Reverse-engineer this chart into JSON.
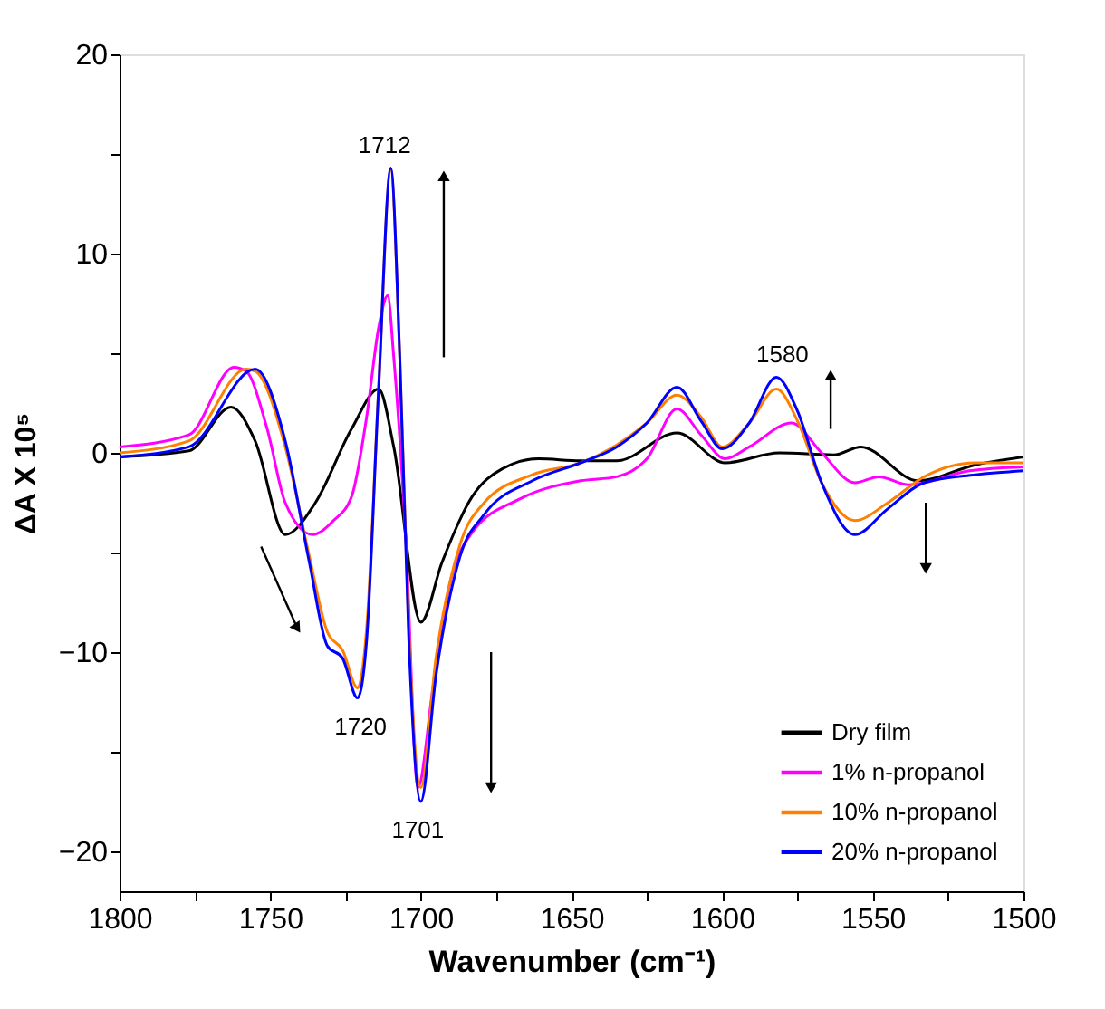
{
  "chart_data": {
    "type": "line",
    "xlabel": "Wavenumber (cm⁻¹)",
    "ylabel": "ΔA X 10⁵",
    "xlim": [
      1800,
      1500
    ],
    "ylim": [
      -22,
      20
    ],
    "xticks": [
      1800,
      {
        "value": 1775,
        "label": null
      },
      1750,
      {
        "value": 1725,
        "label": null
      },
      1700,
      {
        "value": 1675,
        "label": null
      },
      1650,
      {
        "value": 1625,
        "label": null
      },
      1600,
      {
        "value": 1575,
        "label": null
      },
      1550,
      {
        "value": 1525,
        "label": null
      },
      1500
    ],
    "yticks": [
      -20,
      {
        "value": -15,
        "label": null
      },
      -10,
      {
        "value": -5,
        "label": null
      },
      0,
      {
        "value": 5,
        "label": null
      },
      10,
      {
        "value": 15,
        "label": null
      },
      20
    ],
    "grid": false,
    "legend": "bottom right",
    "marker": "none",
    "line_style": "solid",
    "annotations": [
      {
        "text": "1712",
        "x": 1712,
        "y": 14.3
      },
      {
        "text": "1720",
        "x": 1720,
        "y": -12.3
      },
      {
        "text": "1701",
        "x": 1701,
        "y": -17.5
      },
      {
        "text": "1580",
        "x": 1580,
        "y": 3.8
      }
    ],
    "series": [
      {
        "name": "Dry film",
        "color": "#000000",
        "x": [
          1800,
          1777,
          1763,
          1755,
          1745,
          1735,
          1723,
          1714,
          1709,
          1700,
          1693,
          1683,
          1673,
          1661,
          1647,
          1635,
          1615,
          1599,
          1581,
          1563,
          1554,
          1535,
          1516,
          1500
        ],
        "values": [
          -0.2,
          0.1,
          2.3,
          0.6,
          -4.1,
          -2.5,
          1.2,
          3.2,
          0.3,
          -8.5,
          -5.5,
          -2.2,
          -0.8,
          -0.3,
          -0.4,
          -0.4,
          1.0,
          -0.5,
          0,
          -0.1,
          0.3,
          -1.4,
          -0.6,
          -0.2
        ]
      },
      {
        "name": "1%  n-propanol",
        "color": "#ff00ff",
        "x": [
          1800,
          1777,
          1762,
          1758,
          1751,
          1745,
          1736,
          1729,
          1723,
          1718,
          1714,
          1711,
          1709,
          1705,
          1701,
          1696,
          1691,
          1683,
          1667,
          1647,
          1635,
          1625,
          1615,
          1607,
          1599,
          1591,
          1577,
          1567,
          1556,
          1548,
          1538,
          1518,
          1500
        ],
        "values": [
          0.3,
          0.9,
          4.3,
          4.1,
          1.2,
          -2.5,
          -4.1,
          -3.4,
          -2.2,
          1.8,
          6.3,
          7.9,
          4.8,
          -4.3,
          -16.8,
          -11.8,
          -7,
          -4,
          -2.3,
          -1.4,
          -1.2,
          -0.3,
          2.2,
          0.9,
          -0.3,
          0.3,
          1.5,
          0,
          -1.5,
          -1.2,
          -1.6,
          -0.9,
          -0.7
        ]
      },
      {
        "name": "10% n-propanol",
        "color": "#ff8000",
        "x": [
          1800,
          1777,
          1758,
          1755,
          1745,
          1737,
          1731,
          1726,
          1721,
          1718,
          1714,
          1710,
          1707,
          1704,
          1700,
          1695,
          1687,
          1679,
          1663,
          1647,
          1635,
          1625,
          1615,
          1607,
          1600,
          1591,
          1582,
          1575,
          1567,
          1556,
          1545,
          1533,
          1516,
          1500
        ],
        "values": [
          0,
          0.6,
          4.2,
          4.1,
          0.3,
          -5.2,
          -9,
          -9.9,
          -11.8,
          -8.8,
          3.3,
          14.2,
          4.8,
          -8.8,
          -16.8,
          -10.3,
          -4.6,
          -2.5,
          -1.1,
          -0.5,
          0.4,
          1.5,
          2.9,
          1.8,
          0.3,
          1.5,
          3.2,
          1.6,
          -1.5,
          -3.4,
          -2.5,
          -1.2,
          -0.5,
          -0.5
        ]
      },
      {
        "name": "20% n-propanol",
        "color": "#0000ff",
        "x": [
          1800,
          1777,
          1755,
          1745,
          1737,
          1731,
          1726,
          1721,
          1718,
          1714,
          1710,
          1707,
          1704,
          1700,
          1695,
          1687,
          1679,
          1663,
          1647,
          1635,
          1625,
          1615,
          1607,
          1600,
          1591,
          1582,
          1575,
          1567,
          1556,
          1545,
          1533,
          1516,
          1500
        ],
        "values": [
          -0.2,
          0.3,
          4.2,
          0.6,
          -5.5,
          -9.7,
          -10.3,
          -12.3,
          -9.4,
          3.3,
          14.3,
          4.8,
          -9.4,
          -17.5,
          -11.2,
          -5.2,
          -3.1,
          -1.4,
          -0.5,
          0.3,
          1.5,
          3.3,
          1.6,
          0.2,
          1.5,
          3.8,
          2.1,
          -1.5,
          -4.1,
          -2.8,
          -1.5,
          -1.1,
          -0.9
        ]
      }
    ]
  }
}
